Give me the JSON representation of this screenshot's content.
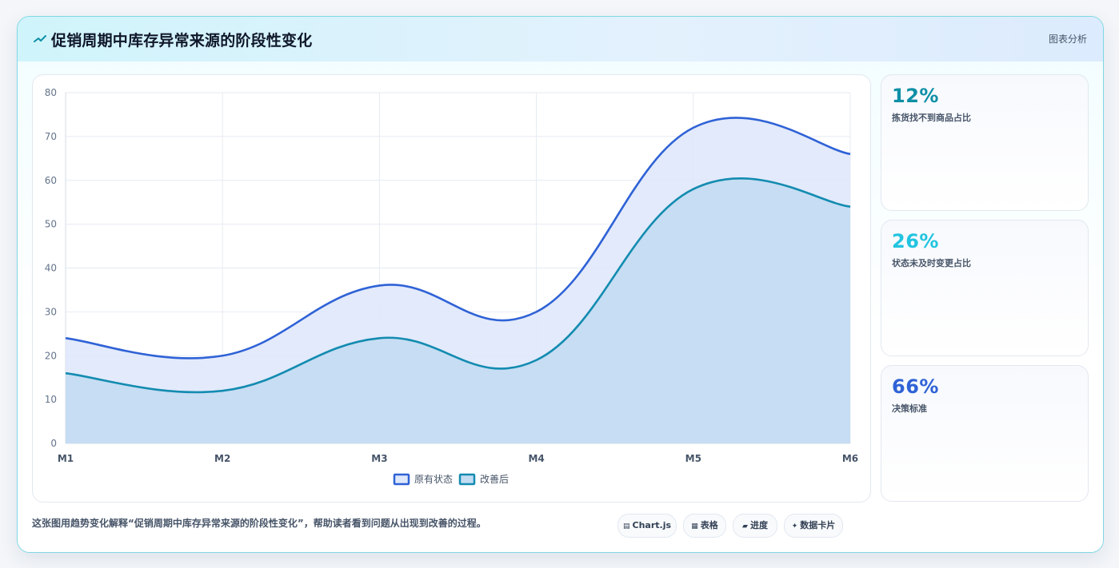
{
  "header": {
    "icon": "sparkline-icon",
    "title": "促销周期中库存异常来源的阶段性变化",
    "tag": "图表分析"
  },
  "chart_data": {
    "type": "area",
    "categories": [
      "M1",
      "M2",
      "M3",
      "M4",
      "M5",
      "M6"
    ],
    "series": [
      {
        "name": "原有状态",
        "values": [
          24,
          20,
          36,
          30,
          72,
          66
        ],
        "color": "#2f62d6",
        "fill": "#dfe8fb"
      },
      {
        "name": "改善后",
        "values": [
          16,
          12,
          24,
          19,
          58,
          54
        ],
        "color": "#138bb0",
        "fill": "#c3dcf2"
      }
    ],
    "ylim": [
      0,
      80
    ],
    "yticks": [
      0,
      10,
      20,
      30,
      40,
      50,
      60,
      70,
      80
    ],
    "grid": true,
    "legend_position": "bottom-center",
    "smooth": true
  },
  "stats": [
    {
      "value": "12%",
      "label": "拣货找不到商品占比",
      "color": "#0e8fa6"
    },
    {
      "value": "26%",
      "label": "状态未及时变更占比",
      "color": "#22c4e0"
    },
    {
      "value": "66%",
      "label": "决策标准",
      "color": "#2f62d6"
    }
  ],
  "footer": {
    "note": "这张图用趋势变化解释“促销周期中库存异常来源的阶段性变化”，帮助读者看到问题从出现到改善的过程。",
    "pills": [
      {
        "icon": "chart-icon",
        "glyph": "▤",
        "label": "Chart.js"
      },
      {
        "icon": "table-icon",
        "glyph": "▦",
        "label": "表格"
      },
      {
        "icon": "progress-icon",
        "glyph": "▰",
        "label": "进度"
      },
      {
        "icon": "sparkle-icon",
        "glyph": "✦",
        "label": "数据卡片"
      }
    ]
  }
}
